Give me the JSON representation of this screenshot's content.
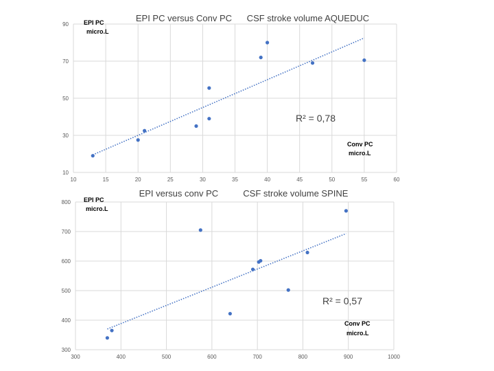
{
  "chart_data": [
    {
      "type": "scatter",
      "title": "EPI PC versus Conv PC      CSF stroke volume AQUEDUC",
      "ylabel_line1": "EPI PC",
      "ylabel_line2": "micro.L",
      "xlabel_line1": "Conv PC",
      "xlabel_line2": "micro.L",
      "r2_label": "R² = 0,78",
      "xlim": [
        10,
        60
      ],
      "ylim": [
        10,
        90
      ],
      "xticks": [
        10,
        15,
        20,
        25,
        30,
        35,
        40,
        45,
        50,
        55,
        60
      ],
      "yticks": [
        10,
        30,
        50,
        70,
        90
      ],
      "points": [
        {
          "x": 13,
          "y": 19
        },
        {
          "x": 20,
          "y": 27.5
        },
        {
          "x": 21,
          "y": 32.5
        },
        {
          "x": 29,
          "y": 35
        },
        {
          "x": 31,
          "y": 55.5
        },
        {
          "x": 31,
          "y": 39
        },
        {
          "x": 39,
          "y": 72
        },
        {
          "x": 40,
          "y": 80
        },
        {
          "x": 47,
          "y": 69
        },
        {
          "x": 55,
          "y": 70.5
        }
      ],
      "trendline": {
        "x": [
          13,
          55
        ],
        "y": [
          19.5,
          82.5
        ]
      },
      "color": "#4472c4"
    },
    {
      "type": "scatter",
      "title": "EPI versus conv PC          CSF stroke volume SPINE",
      "ylabel_line1": "EPI PC",
      "ylabel_line2": "micro.L",
      "xlabel_line1": "Conv PC",
      "xlabel_line2": "micro.L",
      "r2_label": "R² = 0,57",
      "xlim": [
        300,
        1000
      ],
      "ylim": [
        300,
        800
      ],
      "xticks": [
        300,
        400,
        500,
        600,
        700,
        800,
        900,
        1000
      ],
      "yticks": [
        300,
        400,
        500,
        600,
        700,
        800
      ],
      "points": [
        {
          "x": 370,
          "y": 340
        },
        {
          "x": 380,
          "y": 365
        },
        {
          "x": 575,
          "y": 705
        },
        {
          "x": 640,
          "y": 422
        },
        {
          "x": 690,
          "y": 572
        },
        {
          "x": 703,
          "y": 597
        },
        {
          "x": 707,
          "y": 601
        },
        {
          "x": 768,
          "y": 502
        },
        {
          "x": 810,
          "y": 629
        },
        {
          "x": 895,
          "y": 770
        }
      ],
      "trendline": {
        "x": [
          370,
          895
        ],
        "y": [
          370,
          693
        ]
      },
      "color": "#4472c4"
    }
  ]
}
